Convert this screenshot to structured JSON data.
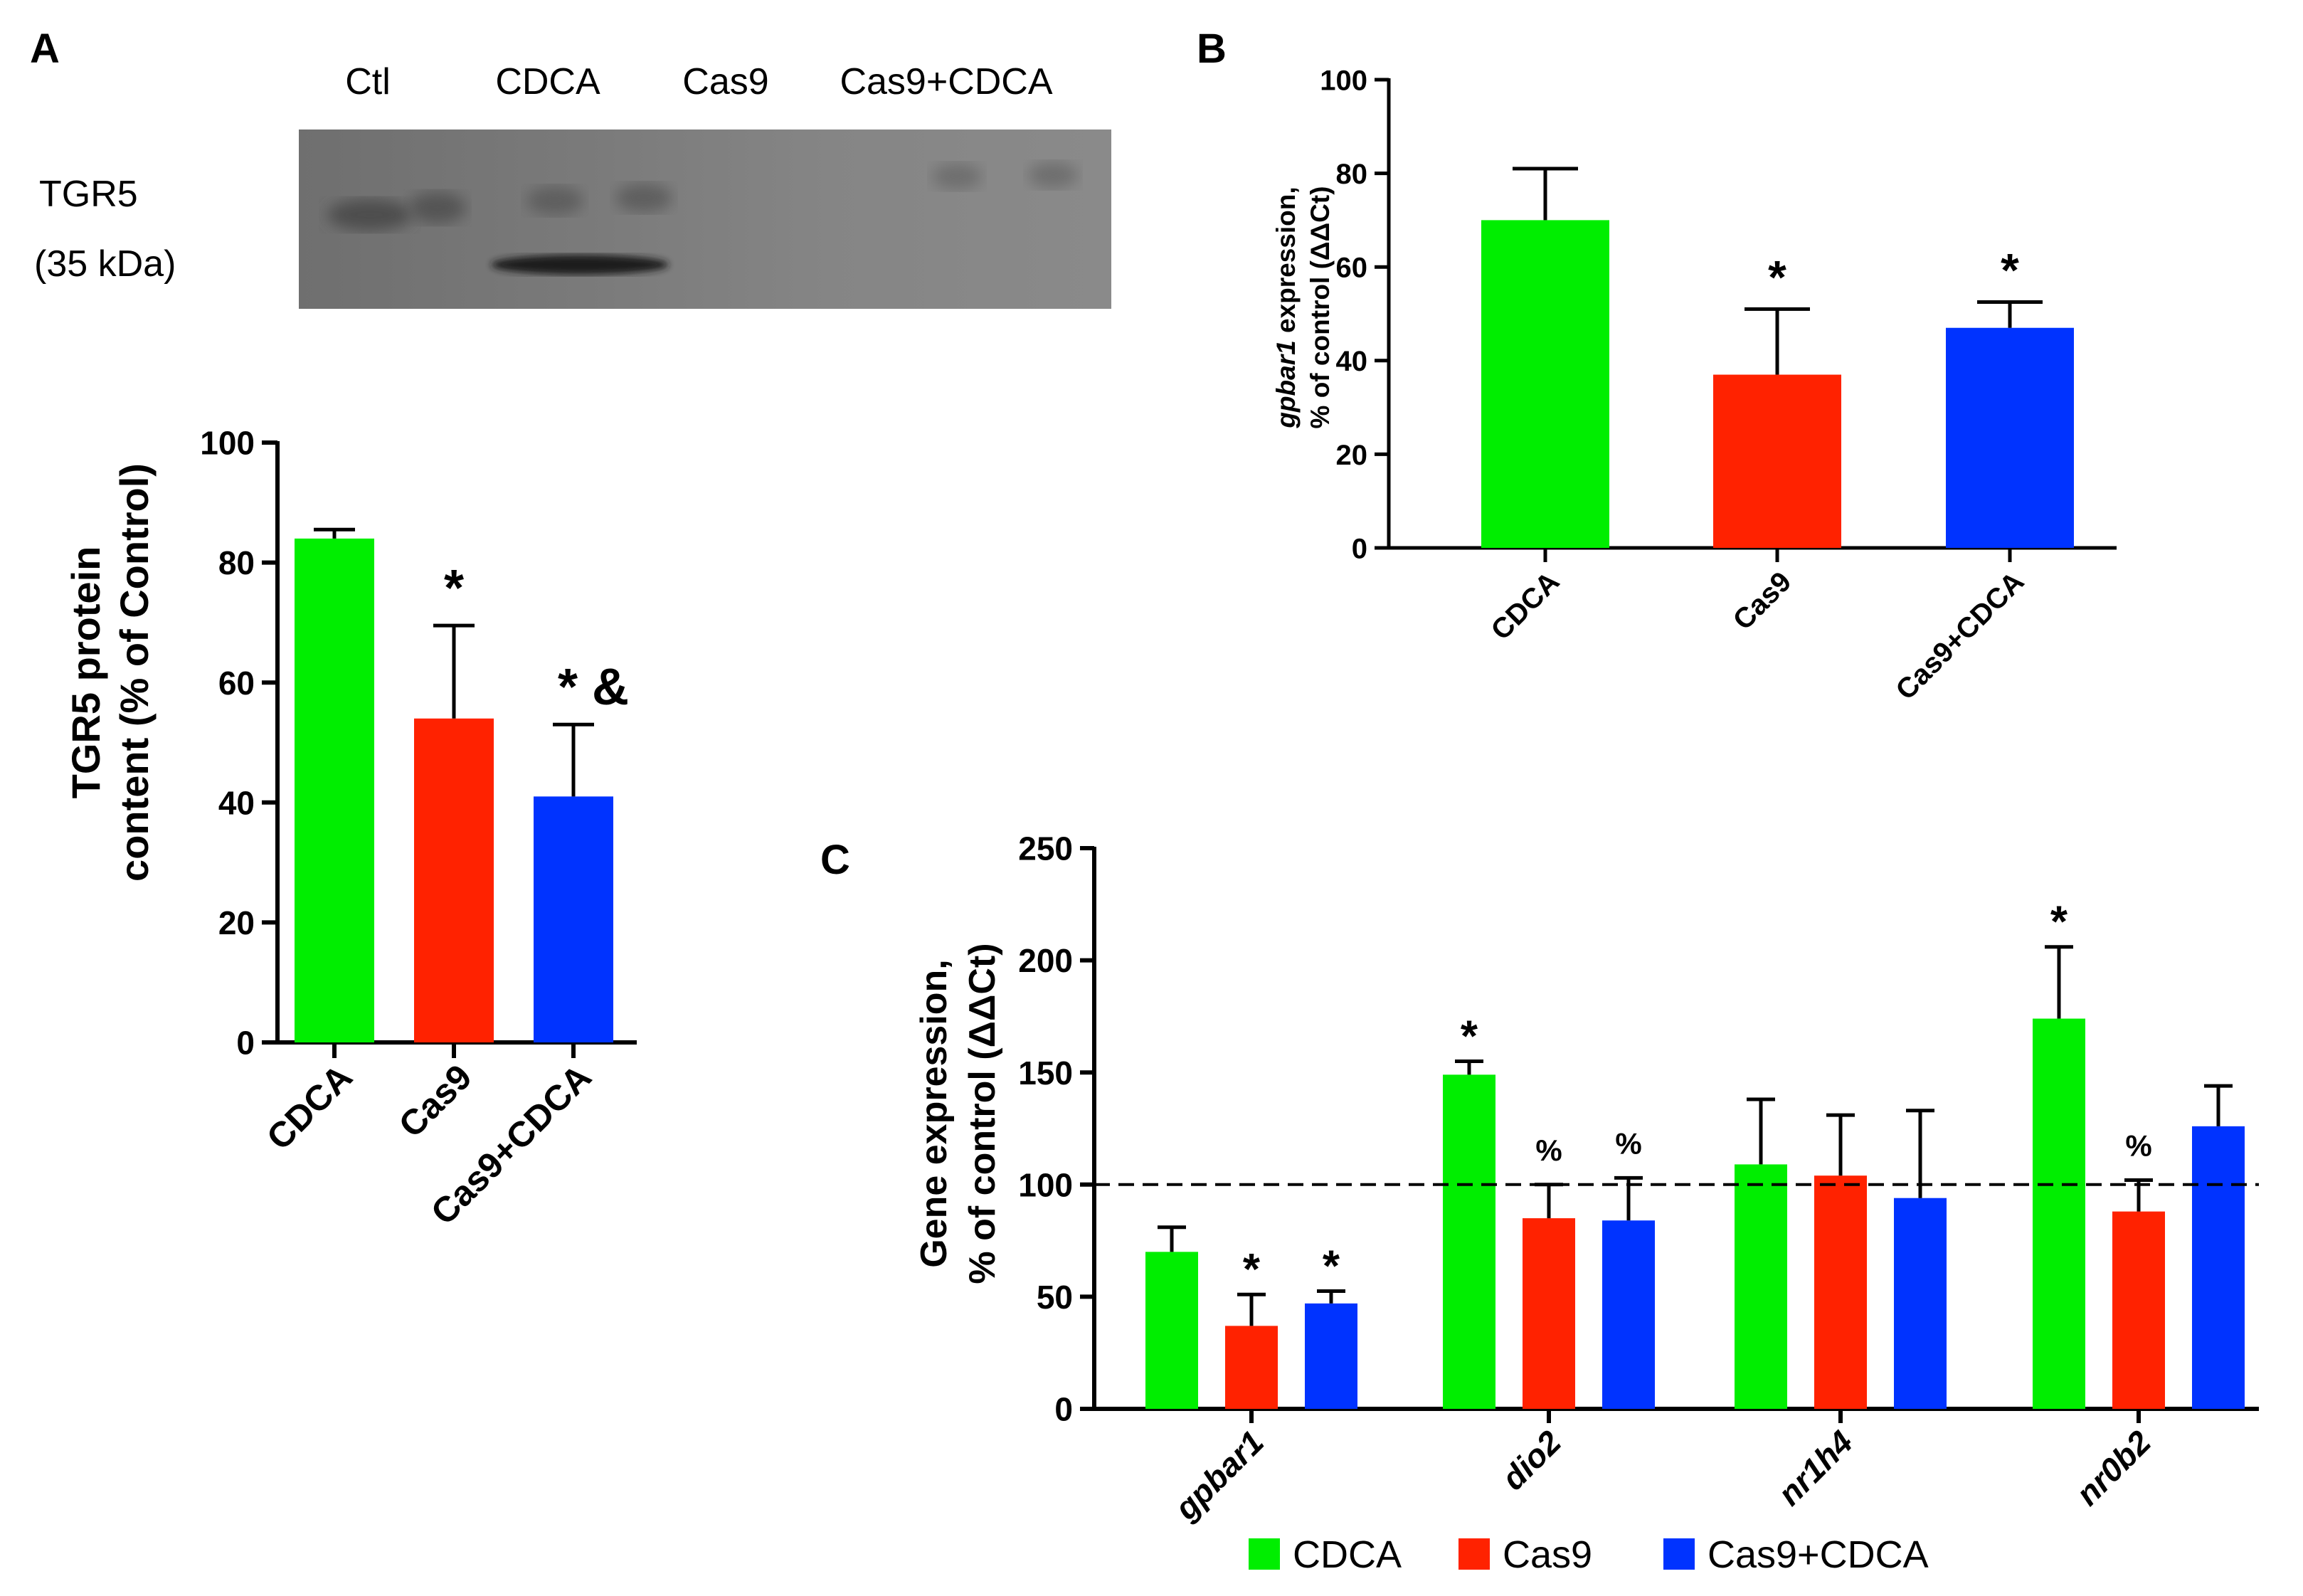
{
  "colors": {
    "cdca": "#00ee00",
    "cas9": "#ff2200",
    "cas9cdca": "#0033ff",
    "axis": "#000000",
    "blot_bg": "#7f7f7f"
  },
  "panels": {
    "a_label": "A",
    "b_label": "B",
    "c_label": "C"
  },
  "blot": {
    "protein_label": "TGR5",
    "kda_label": "(35 kDa)",
    "lanes": [
      "Ctl",
      "CDCA",
      "Cas9",
      "Cas9+CDCA"
    ]
  },
  "chart_data": [
    {
      "id": "A",
      "type": "bar",
      "ylabel_line1": "TGR5 protein",
      "ylabel_line2": "content (% of Control)",
      "ylim": [
        0,
        100
      ],
      "yticks": [
        "0",
        "20",
        "40",
        "60",
        "80",
        "100"
      ],
      "categories": [
        "CDCA",
        "Cas9",
        "Cas9+CDCA"
      ],
      "values": [
        84,
        54,
        41
      ],
      "errors": [
        1.5,
        15.5,
        12
      ],
      "annotations": [
        "",
        "*",
        "* &"
      ]
    },
    {
      "id": "B",
      "type": "bar",
      "ylabel_italic": "gpbar1",
      "ylabel_line1_rest": " expression,",
      "ylabel_line2": "% of control (ΔΔCt)",
      "ylim": [
        0,
        100
      ],
      "yticks": [
        "0",
        "20",
        "40",
        "60",
        "80",
        "100"
      ],
      "categories": [
        "CDCA",
        "Cas9",
        "Cas9+CDCA"
      ],
      "values": [
        70,
        37,
        47
      ],
      "errors": [
        11,
        14,
        5.5
      ],
      "annotations": [
        "",
        "*",
        "*"
      ]
    },
    {
      "id": "C",
      "type": "bar",
      "ylabel_line1": "Gene expression,",
      "ylabel_line2": "% of control (ΔΔCt)",
      "ylim": [
        0,
        250
      ],
      "yticks": [
        "0",
        "50",
        "100",
        "150",
        "200",
        "250"
      ],
      "reference_line": 100,
      "categories": [
        "gpbar1",
        "dio2",
        "nr1h4",
        "nr0b2"
      ],
      "series": [
        {
          "name": "CDCA",
          "values": [
            70,
            149,
            109,
            174
          ],
          "errors": [
            11,
            6,
            29,
            32
          ],
          "annotations": [
            "",
            "*",
            "",
            "*"
          ]
        },
        {
          "name": "Cas9",
          "values": [
            37,
            85,
            104,
            88
          ],
          "errors": [
            14,
            15,
            27,
            14
          ],
          "annotations": [
            "*",
            "%",
            "",
            "%"
          ]
        },
        {
          "name": "Cas9+CDCA",
          "values": [
            47,
            84,
            94,
            126
          ],
          "errors": [
            5.5,
            19,
            39,
            18
          ],
          "annotations": [
            "*",
            "%",
            "",
            ""
          ]
        }
      ],
      "legend": [
        "CDCA",
        "Cas9",
        "Cas9+CDCA"
      ]
    }
  ]
}
